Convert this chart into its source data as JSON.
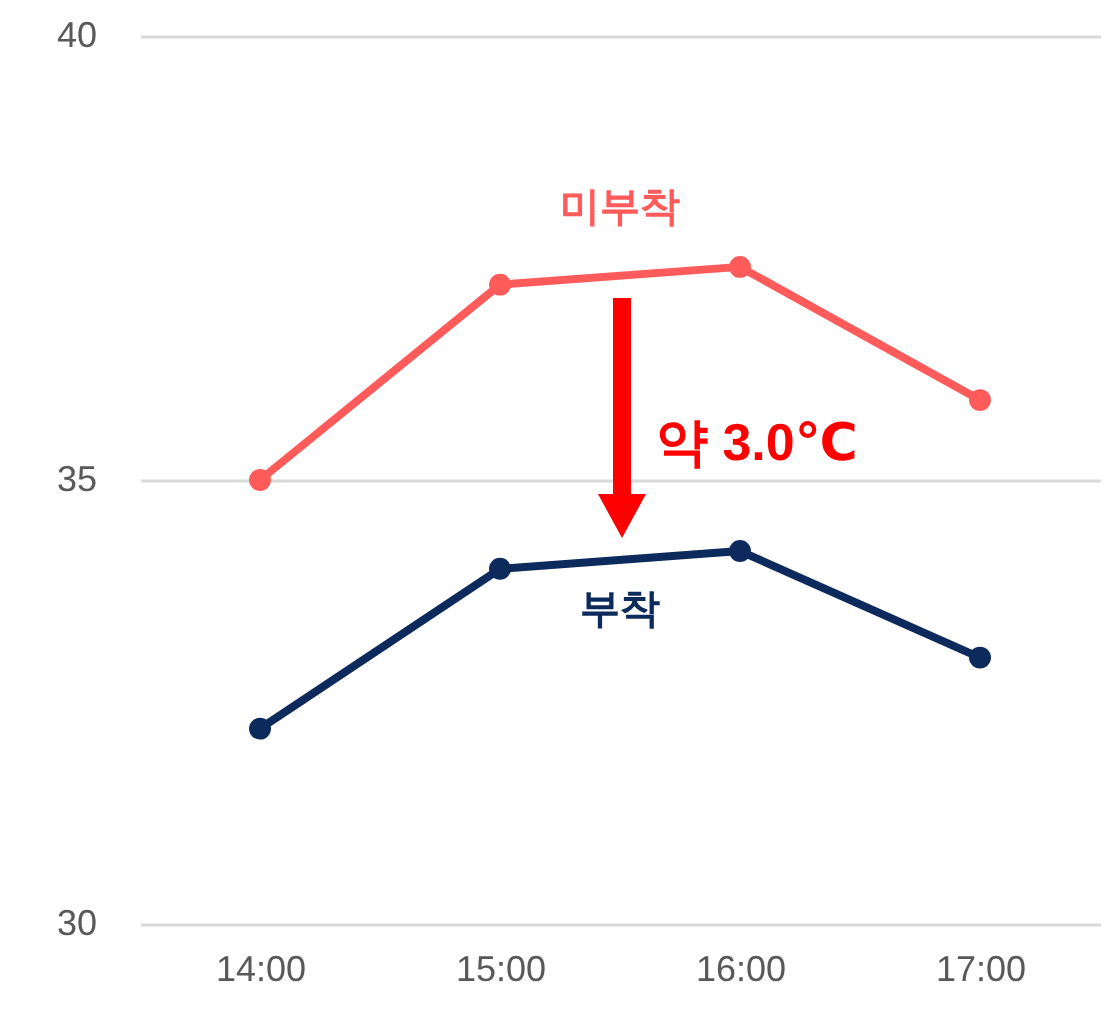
{
  "chart_data": {
    "type": "line",
    "categories": [
      "14:00",
      "15:00",
      "16:00",
      "17:00"
    ],
    "series": [
      {
        "name": "미부착",
        "color": "#ff5b5b",
        "values": [
          35.0,
          37.2,
          37.4,
          35.9
        ]
      },
      {
        "name": "부착",
        "color": "#0c2a5c",
        "values": [
          32.2,
          34.0,
          34.2,
          33.0
        ]
      }
    ],
    "ylim": [
      30,
      40
    ],
    "yticks": [
      30,
      35,
      40
    ],
    "grid": "y",
    "marker": "circle",
    "line_style": "solid",
    "annotations": [
      "약 3.0℃"
    ]
  }
}
